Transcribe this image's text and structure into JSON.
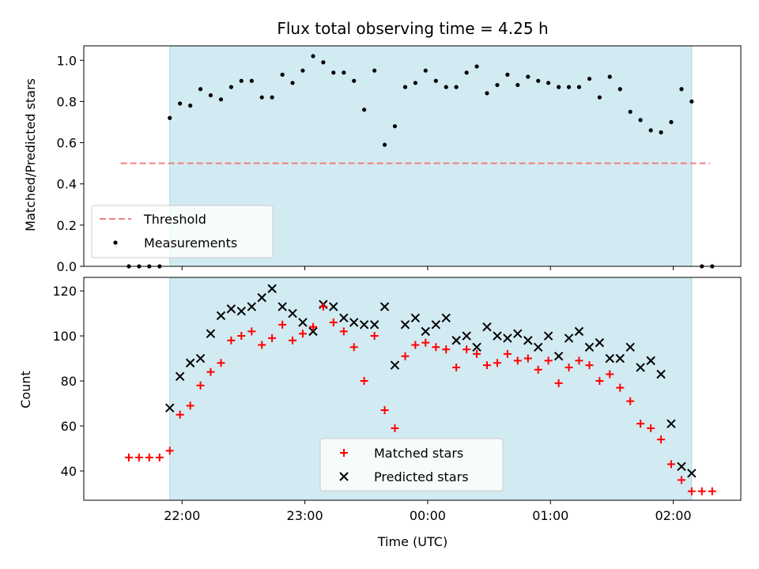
{
  "chart_data": [
    {
      "type": "scatter",
      "title": "Flux total observing time = 4.25 h",
      "xlabel": "",
      "ylabel": "Matched/Predicted stars",
      "ylim": [
        0,
        1.07
      ],
      "yticks": [
        "0.0",
        "0.2",
        "0.4",
        "0.6",
        "0.8",
        "1.0"
      ],
      "shaded_interval_hours": [
        21.9,
        26.15
      ],
      "shade_color": "#add8e6",
      "threshold": {
        "name": "Threshold",
        "value": 0.5,
        "x_range_hours": [
          21.5,
          26.3
        ],
        "color": "#f08080"
      },
      "legend_position": "lower left",
      "legend": [
        "Threshold",
        "Measurements"
      ],
      "series": [
        {
          "name": "Measurements",
          "color": "#000000",
          "x_hours": [
            21.567,
            21.65,
            21.733,
            21.817,
            21.9,
            21.983,
            22.067,
            22.15,
            22.233,
            22.317,
            22.4,
            22.483,
            22.567,
            22.65,
            22.733,
            22.817,
            22.9,
            22.983,
            23.067,
            23.15,
            23.233,
            23.317,
            23.4,
            23.483,
            23.567,
            23.65,
            23.733,
            23.817,
            23.9,
            23.983,
            24.067,
            24.15,
            24.233,
            24.317,
            24.4,
            24.483,
            24.567,
            24.65,
            24.733,
            24.817,
            24.9,
            24.983,
            25.067,
            25.15,
            25.233,
            25.317,
            25.4,
            25.483,
            25.567,
            25.65,
            25.733,
            25.817,
            25.9,
            25.983,
            26.067,
            26.15,
            26.233,
            26.317
          ],
          "y": [
            0.0,
            0.0,
            0.0,
            0.0,
            0.72,
            0.79,
            0.78,
            0.86,
            0.83,
            0.81,
            0.87,
            0.9,
            0.9,
            0.82,
            0.82,
            0.93,
            0.89,
            0.95,
            1.02,
            0.99,
            0.94,
            0.94,
            0.9,
            0.76,
            0.95,
            0.59,
            0.68,
            0.87,
            0.89,
            0.95,
            0.9,
            0.87,
            0.87,
            0.94,
            0.97,
            0.84,
            0.88,
            0.93,
            0.88,
            0.92,
            0.9,
            0.89,
            0.87,
            0.87,
            0.87,
            0.91,
            0.82,
            0.92,
            0.86,
            0.75,
            0.71,
            0.66,
            0.65,
            0.7,
            0.86,
            0.8,
            0.0,
            0.0
          ]
        }
      ]
    },
    {
      "type": "scatter",
      "title": "",
      "xlabel": "Time (UTC)",
      "ylabel": "Count",
      "ylim": [
        27,
        126
      ],
      "yticks": [
        "40",
        "60",
        "80",
        "100",
        "120"
      ],
      "xticks": [
        "22:00",
        "23:00",
        "00:00",
        "01:00",
        "02:00"
      ],
      "xtick_hours": [
        22,
        23,
        24,
        25,
        26
      ],
      "xlim_hours": [
        21.2,
        26.55
      ],
      "shaded_interval_hours": [
        21.9,
        26.15
      ],
      "shade_color": "#add8e6",
      "legend_position": "lower center",
      "legend": [
        "Matched stars",
        "Predicted stars"
      ],
      "series": [
        {
          "name": "Matched stars",
          "marker": "plus",
          "color": "#ff0000",
          "x_hours": [
            21.567,
            21.65,
            21.733,
            21.817,
            21.9,
            21.983,
            22.067,
            22.15,
            22.233,
            22.317,
            22.4,
            22.483,
            22.567,
            22.65,
            22.733,
            22.817,
            22.9,
            22.983,
            23.067,
            23.15,
            23.233,
            23.317,
            23.4,
            23.483,
            23.567,
            23.65,
            23.733,
            23.817,
            23.9,
            23.983,
            24.067,
            24.15,
            24.233,
            24.317,
            24.4,
            24.483,
            24.567,
            24.65,
            24.733,
            24.817,
            24.9,
            24.983,
            25.067,
            25.15,
            25.233,
            25.317,
            25.4,
            25.483,
            25.567,
            25.65,
            25.733,
            25.817,
            25.9,
            25.983,
            26.067,
            26.15,
            26.233,
            26.317
          ],
          "y": [
            46,
            46,
            46,
            46,
            49,
            65,
            69,
            78,
            84,
            88,
            98,
            100,
            102,
            96,
            99,
            105,
            98,
            101,
            104,
            113,
            106,
            102,
            95,
            80,
            100,
            67,
            59,
            91,
            96,
            97,
            95,
            94,
            86,
            94,
            92,
            87,
            88,
            92,
            89,
            90,
            85,
            89,
            79,
            86,
            89,
            87,
            80,
            83,
            77,
            71,
            61,
            59,
            54,
            43,
            36,
            31,
            31,
            31
          ]
        },
        {
          "name": "Predicted stars",
          "marker": "x",
          "color": "#000000",
          "x_hours": [
            21.9,
            21.983,
            22.067,
            22.15,
            22.233,
            22.317,
            22.4,
            22.483,
            22.567,
            22.65,
            22.733,
            22.817,
            22.9,
            22.983,
            23.067,
            23.15,
            23.233,
            23.317,
            23.4,
            23.483,
            23.567,
            23.65,
            23.733,
            23.817,
            23.9,
            23.983,
            24.067,
            24.15,
            24.233,
            24.317,
            24.4,
            24.483,
            24.567,
            24.65,
            24.733,
            24.817,
            24.9,
            24.983,
            25.067,
            25.15,
            25.233,
            25.317,
            25.4,
            25.483,
            25.567,
            25.65,
            25.733,
            25.817,
            25.9,
            25.983,
            26.067,
            26.15
          ],
          "y": [
            68,
            82,
            88,
            90,
            101,
            109,
            112,
            111,
            113,
            117,
            121,
            113,
            110,
            106,
            102,
            114,
            113,
            108,
            106,
            105,
            105,
            113,
            87,
            105,
            108,
            102,
            105,
            108,
            98,
            100,
            95,
            104,
            100,
            99,
            101,
            98,
            95,
            100,
            91,
            99,
            102,
            95,
            97,
            90,
            90,
            95,
            86,
            89,
            83,
            61,
            42,
            39
          ]
        }
      ]
    }
  ]
}
